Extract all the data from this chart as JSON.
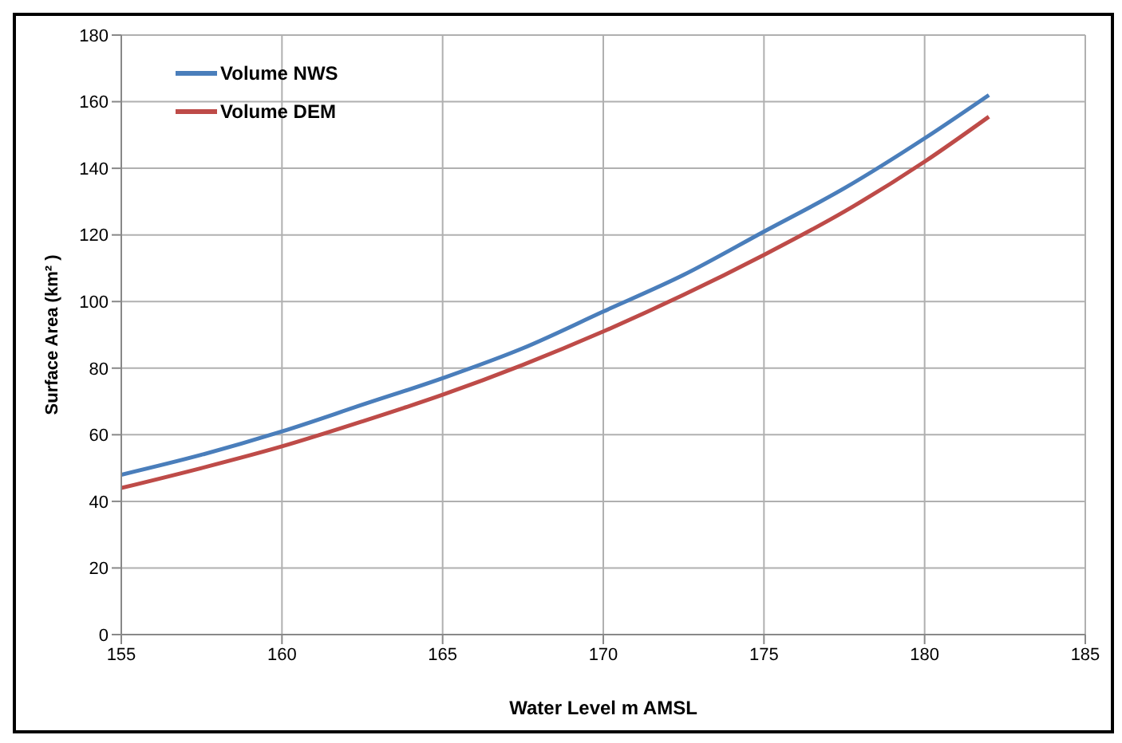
{
  "chart_data": {
    "type": "line",
    "xlabel": "Water Level m AMSL",
    "ylabel": "Surface Area (km² )",
    "x": [
      155,
      157.5,
      160,
      162.5,
      165,
      167.5,
      170,
      172.5,
      175,
      177.5,
      180,
      182
    ],
    "series": [
      {
        "name": "Volume NWS",
        "color": "#4a7ebb",
        "values": [
          48,
          54,
          61,
          69,
          77,
          86,
          97,
          108,
          121,
          134,
          149,
          162
        ]
      },
      {
        "name": "Volume DEM",
        "color": "#be4b48",
        "values": [
          44,
          50,
          56.5,
          64,
          72,
          81,
          91,
          102,
          114,
          127,
          142,
          155.5
        ]
      }
    ],
    "xlim": [
      155,
      185
    ],
    "xticks": [
      155,
      160,
      165,
      170,
      175,
      180,
      185
    ],
    "ylim": [
      0,
      180
    ],
    "yticks": [
      0,
      20,
      40,
      60,
      80,
      100,
      120,
      140,
      160,
      180
    ],
    "grid": true,
    "legend": "top left",
    "marker": "none",
    "line_style": "solid"
  }
}
